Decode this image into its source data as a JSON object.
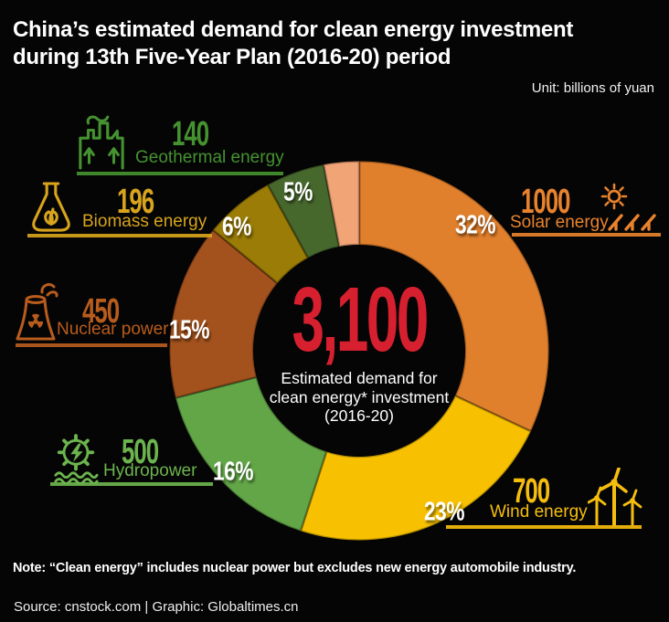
{
  "canvas": {
    "background": "#050505"
  },
  "header": {
    "title_line1": "China’s estimated demand for clean energy investment",
    "title_line2": "during 13th Five-Year Plan (2016-20) period",
    "unit_label": "Unit: billions of yuan"
  },
  "center": {
    "total": "3,100",
    "total_color": "#d6202f",
    "desc_line1": "Estimated demand for",
    "desc_line2": "clean energy* investment",
    "desc_line3": "(2016-20)"
  },
  "chart_data": {
    "type": "pie",
    "subtype": "donut",
    "title": "China’s estimated demand for clean energy investment during 13th Five-Year Plan (2016-20) period",
    "unit": "billions of yuan",
    "total": 3100,
    "start_angle_deg": 0,
    "direction": "clockwise",
    "donut_hole_ratio": 0.555,
    "segments": [
      {
        "key": "solar",
        "label": "Solar energy",
        "value": 1000,
        "value_label": "1000",
        "percent_value": 32,
        "percent_label": "32%",
        "color": "#e07f2c",
        "callout_color": "#e8822d"
      },
      {
        "key": "wind",
        "label": "Wind energy",
        "value": 700,
        "value_label": "700",
        "percent_value": 23,
        "percent_label": "23%",
        "color": "#f7c101",
        "callout_color": "#f6bd0e"
      },
      {
        "key": "hydro",
        "label": "Hydropower",
        "value": 500,
        "value_label": "500",
        "percent_value": 16,
        "percent_label": "16%",
        "color": "#62a647",
        "callout_color": "#6cb44e"
      },
      {
        "key": "nuclear",
        "label": "Nuclear power",
        "value": 450,
        "value_label": "450",
        "percent_value": 15,
        "percent_label": "15%",
        "color": "#a4521d",
        "callout_color": "#b85c1d"
      },
      {
        "key": "biomass",
        "label": "Biomass energy",
        "value": 196,
        "value_label": "196",
        "percent_value": 6,
        "percent_label": "6%",
        "color": "#9a7c06",
        "callout_color": "#d8a41c"
      },
      {
        "key": "geothermal",
        "label": "Geothermal energy",
        "value": 140,
        "value_label": "140",
        "percent_value": 5,
        "percent_label": "5%",
        "color": "#47682d",
        "callout_color": "#459230"
      },
      {
        "key": "other",
        "label": "",
        "value": null,
        "value_label": "",
        "percent_value": 3,
        "percent_label": "",
        "color": "#f1a476",
        "callout_color": "#f1a476"
      }
    ]
  },
  "footer": {
    "note": "Note: “Clean energy” includes nuclear power but excludes new energy automobile industry.",
    "source": "Source: cnstock.com | Graphic: Globaltimes.cn"
  }
}
